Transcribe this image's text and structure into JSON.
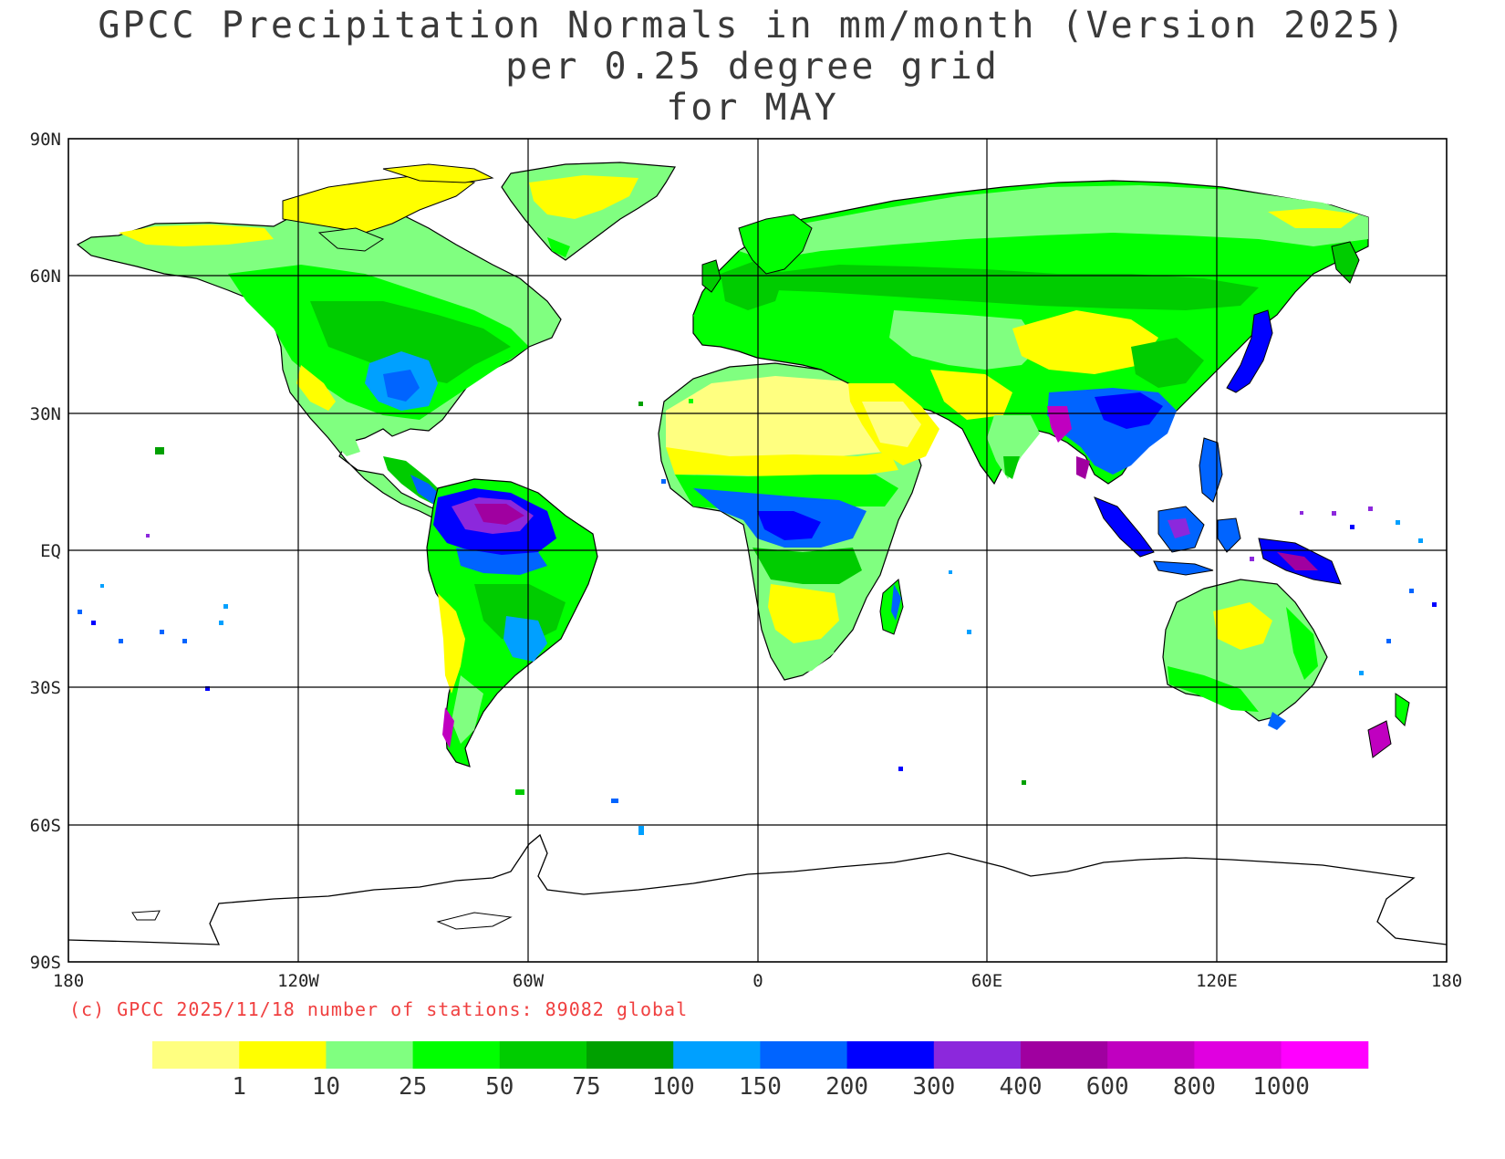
{
  "title": {
    "line1": "GPCC Precipitation Normals in mm/month (Version 2025)",
    "line2": "per 0.25 degree grid",
    "line3": "for MAY"
  },
  "axes": {
    "lat_labels": [
      "90N",
      "60N",
      "30N",
      "EQ",
      "30S",
      "60S",
      "90S"
    ],
    "lon_labels": [
      "180",
      "120W",
      "60W",
      "0",
      "60E",
      "120E",
      "180"
    ]
  },
  "credit": "(c) GPCC 2025/11/18 number of stations: 89082 global",
  "colorbar": {
    "colors": [
      "#ffff80",
      "#ffff00",
      "#80ff80",
      "#00ff00",
      "#00cc00",
      "#00a000",
      "#00a0ff",
      "#0064ff",
      "#0000ff",
      "#8c28dc",
      "#a000a0",
      "#c000c0",
      "#e000e0",
      "#ff00ff"
    ],
    "labels": [
      "1",
      "10",
      "25",
      "50",
      "75",
      "100",
      "150",
      "200",
      "300",
      "400",
      "600",
      "800",
      "1000"
    ],
    "unit": "mm/month"
  },
  "legend_colors": {
    "ocean": "#ffffff",
    "grid": "#000000",
    "coast": "#000000"
  }
}
